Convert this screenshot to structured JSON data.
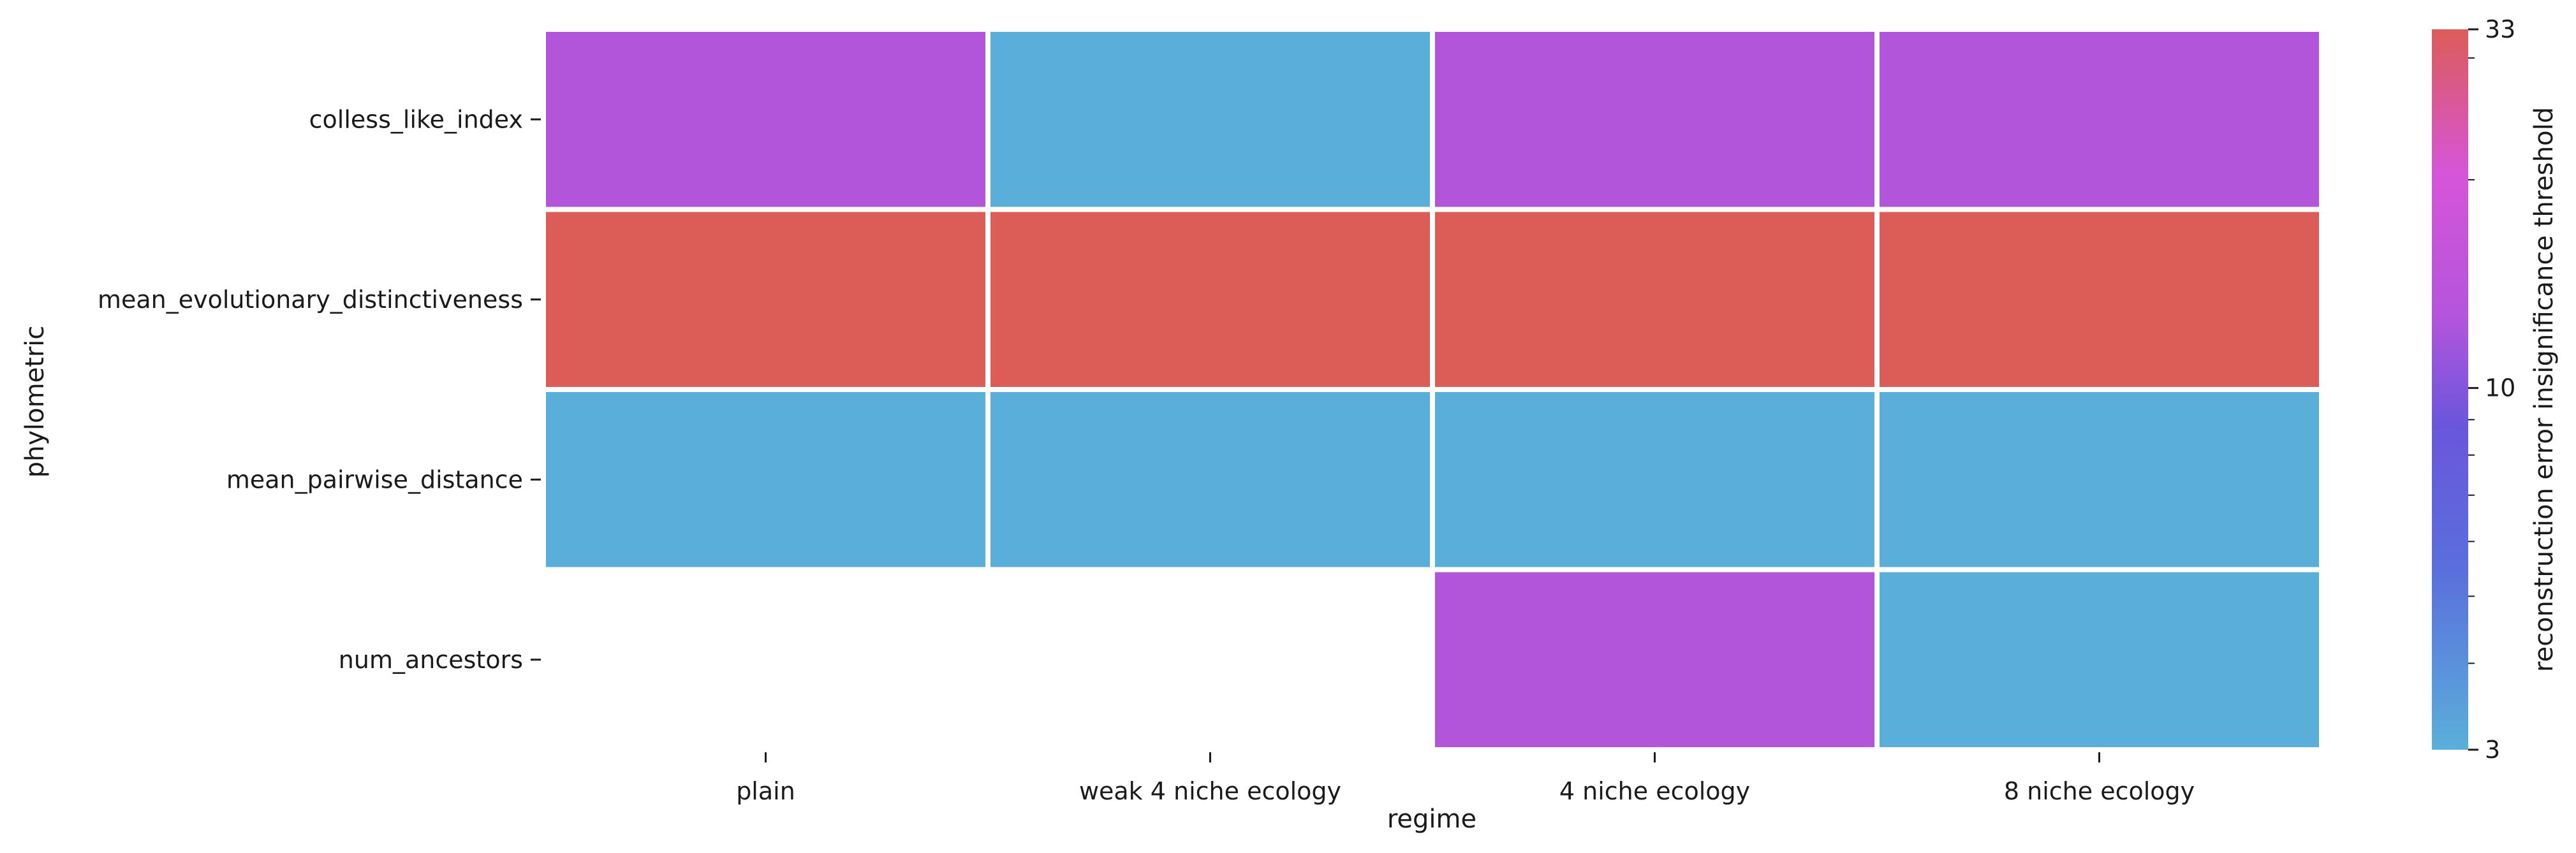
{
  "chart_data": {
    "type": "heatmap",
    "xlabel": "regime",
    "ylabel": "phylometric",
    "x_categories": [
      "plain",
      "weak 4 niche ecology",
      "4 niche ecology",
      "8 niche ecology"
    ],
    "y_categories": [
      "colless_like_index",
      "mean_evolutionary_distinctiveness",
      "mean_pairwise_distance",
      "num_ancestors"
    ],
    "values": [
      [
        10,
        3,
        10,
        10
      ],
      [
        33,
        33,
        33,
        33
      ],
      [
        3,
        3,
        3,
        3
      ],
      [
        null,
        null,
        10,
        3
      ]
    ],
    "colorbar": {
      "label": "reconstruction error insignificance threshold",
      "scale": "log",
      "min": 3,
      "max": 33,
      "ticks": [
        3,
        10,
        33
      ],
      "tick_labels": [
        "3",
        "10",
        "33"
      ]
    },
    "colors": {
      "low": "#5aafda",
      "mid": "#b355dc",
      "high": "#dc5c58",
      "missing": "#ffffff"
    },
    "grid": false
  }
}
